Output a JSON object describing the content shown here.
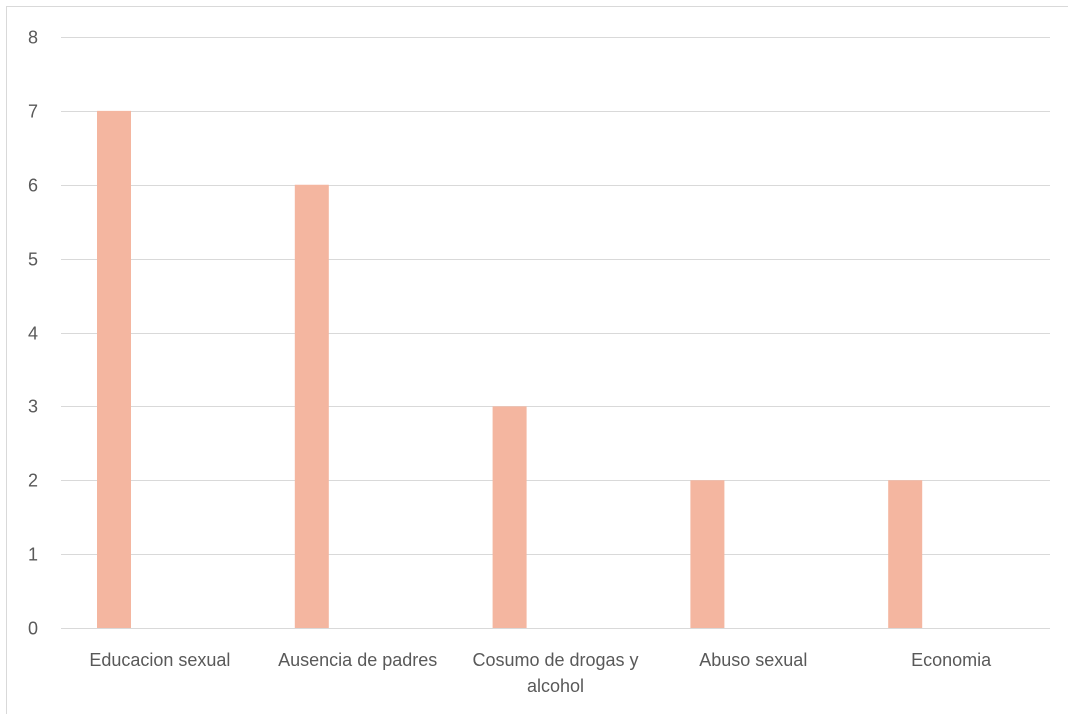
{
  "chart_data": {
    "type": "bar",
    "categories": [
      [
        "Educacion sexual"
      ],
      [
        "Ausencia de padres"
      ],
      [
        "Cosumo de drogas y",
        "alcohol"
      ],
      [
        "Abuso sexual"
      ],
      [
        "Economia"
      ]
    ],
    "values": [
      7,
      6,
      3,
      2,
      2
    ],
    "ylim": [
      0,
      8
    ],
    "yticks": [
      0,
      1,
      2,
      3,
      4,
      5,
      6,
      7,
      8
    ],
    "title": "",
    "xlabel": "",
    "ylabel": "",
    "grid": true,
    "legend": "none",
    "bar_color": "#f4b6a0",
    "grid_color": "#d9d9d9",
    "text_color": "#595959"
  }
}
